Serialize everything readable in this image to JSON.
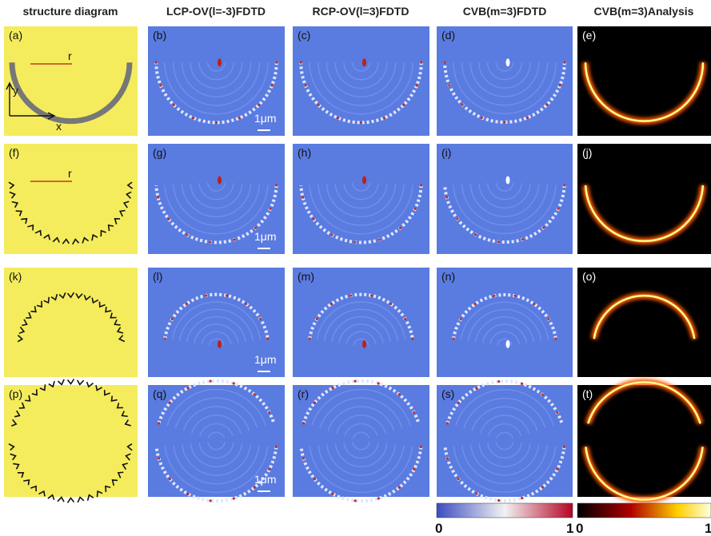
{
  "header": {
    "columns": [
      "structure diagram",
      "LCP-OV(l=-3)FDTD",
      "RCP-OV(l=3)FDTD",
      "CVB(m=3)FDTD",
      "CVB(m=3)Analysis"
    ]
  },
  "panels": [
    [
      "(a)",
      "(b)",
      "(c)",
      "(d)",
      "(e)"
    ],
    [
      "(f)",
      "(g)",
      "(h)",
      "(i)",
      "(j)"
    ],
    [
      "(k)",
      "(l)",
      "(m)",
      "(n)",
      "(o)"
    ],
    [
      "(p)",
      "(q)",
      "(r)",
      "(s)",
      "(t)"
    ]
  ],
  "annotations": {
    "radius": [
      "r",
      "r"
    ],
    "axis_y": "y",
    "axis_x": "x",
    "scale_bar": [
      "1μm",
      "1μm",
      "1μm",
      "1μm"
    ]
  },
  "colorbars": [
    {
      "min": 0,
      "max": 1
    },
    {
      "min": 0,
      "max": 1
    }
  ]
}
